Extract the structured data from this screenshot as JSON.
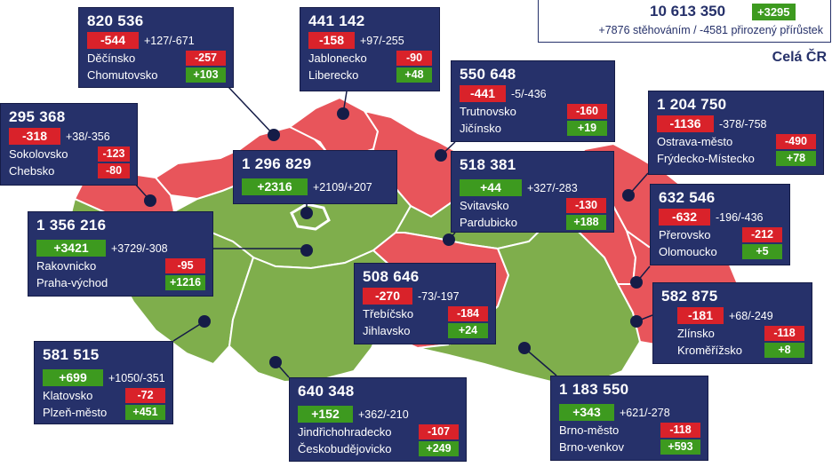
{
  "colors": {
    "decline": "#e8555b",
    "growth": "#7fae4c",
    "card": "#26316a",
    "chip_negative": "#d9222a",
    "chip_positive": "#3d9a1f"
  },
  "national": {
    "population": "10 613 350",
    "change": "+3295",
    "detail": "+7876 stěhováním / -4581 přirozený přírůstek",
    "label": "Celá ČR"
  },
  "regions": [
    {
      "id": "ustecky",
      "population": "820 536",
      "change": "-544",
      "change_sign": "negative",
      "detail": "+127/-671",
      "districts": [
        {
          "name": "Děčínsko",
          "value": "-257",
          "sign": "negative"
        },
        {
          "name": "Chomutovsko",
          "value": "+103",
          "sign": "positive"
        }
      ]
    },
    {
      "id": "liberecky",
      "population": "441 142",
      "change": "-158",
      "change_sign": "negative",
      "detail": "+97/-255",
      "districts": [
        {
          "name": "Jablonecko",
          "value": "-90",
          "sign": "negative"
        },
        {
          "name": "Liberecko",
          "value": "+48",
          "sign": "positive"
        }
      ]
    },
    {
      "id": "kralovehradecky",
      "population": "550 648",
      "change": "-441",
      "change_sign": "negative",
      "detail": "-5/-436",
      "districts": [
        {
          "name": "Trutnovsko",
          "value": "-160",
          "sign": "negative"
        },
        {
          "name": "Jičínsko",
          "value": "+19",
          "sign": "positive"
        }
      ]
    },
    {
      "id": "moravskoslezsky",
      "population": "1 204 750",
      "change": "-1136",
      "change_sign": "negative",
      "detail": "-378/-758",
      "districts": [
        {
          "name": "Ostrava-město",
          "value": "-490",
          "sign": "negative"
        },
        {
          "name": "Frýdecko-Místecko",
          "value": "+78",
          "sign": "positive"
        }
      ]
    },
    {
      "id": "karlovarsky",
      "population": "295 368",
      "change": "-318",
      "change_sign": "negative",
      "detail": "+38/-356",
      "districts": [
        {
          "name": "Sokolovsko",
          "value": "-123",
          "sign": "negative"
        },
        {
          "name": "Chebsko",
          "value": "-80",
          "sign": "negative"
        }
      ]
    },
    {
      "id": "praha",
      "population": "1 296 829",
      "change": "+2316",
      "change_sign": "positive",
      "detail": "+2109/+207",
      "districts": []
    },
    {
      "id": "pardubicky",
      "population": "518 381",
      "change": "+44",
      "change_sign": "positive",
      "detail": "+327/-283",
      "districts": [
        {
          "name": "Svitavsko",
          "value": "-130",
          "sign": "negative"
        },
        {
          "name": "Pardubicko",
          "value": "+188",
          "sign": "positive"
        }
      ]
    },
    {
      "id": "stredocesky",
      "population": "1 356 216",
      "change": "+3421",
      "change_sign": "positive",
      "detail": "+3729/-308",
      "districts": [
        {
          "name": "Rakovnicko",
          "value": "-95",
          "sign": "negative"
        },
        {
          "name": "Praha-východ",
          "value": "+1216",
          "sign": "positive"
        }
      ]
    },
    {
      "id": "olomoucky",
      "population": "632 546",
      "change": "-632",
      "change_sign": "negative",
      "detail": "-196/-436",
      "districts": [
        {
          "name": "Přerovsko",
          "value": "-212",
          "sign": "negative"
        },
        {
          "name": "Olomoucko",
          "value": "+5",
          "sign": "positive"
        }
      ]
    },
    {
      "id": "vysocina",
      "population": "508 646",
      "change": "-270",
      "change_sign": "negative",
      "detail": "-73/-197",
      "districts": [
        {
          "name": "Třebíčsko",
          "value": "-184",
          "sign": "negative"
        },
        {
          "name": "Jihlavsko",
          "value": "+24",
          "sign": "positive"
        }
      ]
    },
    {
      "id": "zlinsky",
      "population": "582 875",
      "change": "-181",
      "change_sign": "negative",
      "detail": "+68/-249",
      "districts": [
        {
          "name": "Zlínsko",
          "value": "-118",
          "sign": "negative"
        },
        {
          "name": "Kroměřížsko",
          "value": "+8",
          "sign": "positive"
        }
      ]
    },
    {
      "id": "plzensky",
      "population": "581 515",
      "change": "+699",
      "change_sign": "positive",
      "detail": "+1050/-351",
      "districts": [
        {
          "name": "Klatovsko",
          "value": "-72",
          "sign": "negative"
        },
        {
          "name": "Plzeň-město",
          "value": "+451",
          "sign": "positive"
        }
      ]
    },
    {
      "id": "jihocesky",
      "population": "640 348",
      "change": "+152",
      "change_sign": "positive",
      "detail": "+362/-210",
      "districts": [
        {
          "name": "Jindřichohradecko",
          "value": "-107",
          "sign": "negative"
        },
        {
          "name": "Českobudějovicko",
          "value": "+249",
          "sign": "positive"
        }
      ]
    },
    {
      "id": "jihomoravsky",
      "population": "1 183 550",
      "change": "+343",
      "change_sign": "positive",
      "detail": "+621/-278",
      "districts": [
        {
          "name": "Brno-město",
          "value": "-118",
          "sign": "negative"
        },
        {
          "name": "Brno-venkov",
          "value": "+593",
          "sign": "positive"
        }
      ]
    }
  ]
}
